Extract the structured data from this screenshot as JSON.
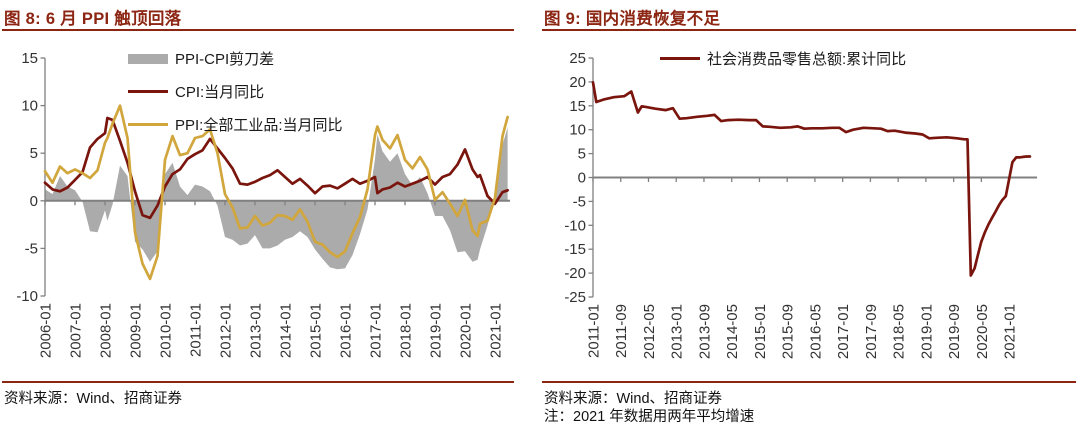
{
  "colors": {
    "accent_red": "#8C2613",
    "line_dark_red": "#7A150E",
    "line_gold": "#D1A63C",
    "area_gray": "#ABABAB",
    "axis_gray": "#808080",
    "axis_text": "#333333"
  },
  "figures": [
    {
      "title": "图 8: 6 月 PPI 触顶回落",
      "source": "资料来源：Wind、招商证券",
      "note": ""
    },
    {
      "title": "图 9: 国内消费恢复不足",
      "source": "资料来源：Wind、招商证券",
      "note": "注：2021 年数据用两年平均增速"
    }
  ],
  "chart_data": [
    {
      "type": "line+area",
      "title": "图 8: 6 月 PPI 触顶回落",
      "xlabel": "",
      "ylabel": "",
      "x_range": [
        2006.0,
        2021.5
      ],
      "y_range": [
        -10,
        15
      ],
      "y_ticks": [
        15,
        10,
        5,
        0,
        -5,
        -10
      ],
      "x_tick_labels": [
        "2006-01",
        "2007-01",
        "2008-01",
        "2009-01",
        "2010-01",
        "2011-01",
        "2012-01",
        "2013-01",
        "2014-01",
        "2015-01",
        "2016-01",
        "2017-01",
        "2018-01",
        "2019-01",
        "2020-01",
        "2021-01"
      ],
      "grid": false,
      "legend_position": "upper-center-stacked",
      "columns": [
        "month_decimal_year",
        "CPI:当月同比",
        "PPI:全部工业品:当月同比"
      ],
      "series": [
        {
          "name": "PPI-CPI剪刀差",
          "kind": "area",
          "color": "#ABABAB",
          "formula": "PPI - CPI"
        },
        {
          "name": "CPI:当月同比",
          "kind": "line",
          "color": "#7A150E",
          "col": 1
        },
        {
          "name": "PPI:全部工业品:当月同比",
          "kind": "line",
          "color": "#D1A63C",
          "col": 2
        }
      ],
      "rows": [
        [
          2006.0,
          1.9,
          3.1
        ],
        [
          2006.25,
          1.2,
          1.9
        ],
        [
          2006.5,
          1.0,
          3.6
        ],
        [
          2006.75,
          1.4,
          2.9
        ],
        [
          2007.0,
          2.2,
          3.3
        ],
        [
          2007.25,
          3.0,
          2.9
        ],
        [
          2007.5,
          5.6,
          2.4
        ],
        [
          2007.75,
          6.5,
          3.2
        ],
        [
          2008.0,
          7.1,
          6.1
        ],
        [
          2008.08,
          8.7,
          6.6
        ],
        [
          2008.25,
          8.5,
          8.1
        ],
        [
          2008.5,
          6.3,
          10.0
        ],
        [
          2008.75,
          4.0,
          6.6
        ],
        [
          2009.0,
          1.0,
          -3.3
        ],
        [
          2009.25,
          -1.5,
          -6.6
        ],
        [
          2009.5,
          -1.8,
          -8.2
        ],
        [
          2009.75,
          -0.5,
          -5.8
        ],
        [
          2010.0,
          1.5,
          4.3
        ],
        [
          2010.25,
          2.8,
          6.8
        ],
        [
          2010.5,
          3.3,
          4.8
        ],
        [
          2010.75,
          4.4,
          5.0
        ],
        [
          2011.0,
          4.9,
          6.6
        ],
        [
          2011.25,
          5.3,
          6.8
        ],
        [
          2011.5,
          6.5,
          7.5
        ],
        [
          2011.75,
          5.5,
          5.0
        ],
        [
          2012.0,
          4.5,
          0.7
        ],
        [
          2012.25,
          3.4,
          -0.7
        ],
        [
          2012.5,
          1.8,
          -2.9
        ],
        [
          2012.75,
          1.7,
          -2.8
        ],
        [
          2013.0,
          2.0,
          -1.6
        ],
        [
          2013.25,
          2.4,
          -2.6
        ],
        [
          2013.5,
          2.7,
          -2.3
        ],
        [
          2013.75,
          3.2,
          -1.5
        ],
        [
          2014.0,
          2.5,
          -1.6
        ],
        [
          2014.25,
          1.8,
          -2.0
        ],
        [
          2014.5,
          2.3,
          -0.9
        ],
        [
          2014.75,
          1.6,
          -2.2
        ],
        [
          2015.0,
          0.8,
          -4.3
        ],
        [
          2015.25,
          1.5,
          -4.6
        ],
        [
          2015.5,
          1.6,
          -5.4
        ],
        [
          2015.75,
          1.3,
          -5.9
        ],
        [
          2016.0,
          1.8,
          -5.3
        ],
        [
          2016.25,
          2.3,
          -3.4
        ],
        [
          2016.5,
          1.8,
          -1.7
        ],
        [
          2016.75,
          2.1,
          1.2
        ],
        [
          2017.0,
          2.5,
          6.9
        ],
        [
          2017.08,
          0.8,
          7.8
        ],
        [
          2017.25,
          1.2,
          6.4
        ],
        [
          2017.5,
          1.4,
          5.5
        ],
        [
          2017.75,
          1.9,
          6.9
        ],
        [
          2018.0,
          1.5,
          4.3
        ],
        [
          2018.25,
          1.8,
          3.4
        ],
        [
          2018.5,
          2.1,
          4.6
        ],
        [
          2018.75,
          2.5,
          3.3
        ],
        [
          2019.0,
          1.7,
          0.1
        ],
        [
          2019.25,
          2.5,
          0.9
        ],
        [
          2019.5,
          2.8,
          -0.3
        ],
        [
          2019.75,
          3.8,
          -1.6
        ],
        [
          2020.0,
          5.4,
          0.1
        ],
        [
          2020.25,
          3.3,
          -3.1
        ],
        [
          2020.42,
          2.5,
          -3.7
        ],
        [
          2020.5,
          2.7,
          -2.4
        ],
        [
          2020.75,
          0.5,
          -2.1
        ],
        [
          2021.0,
          -0.3,
          0.3
        ],
        [
          2021.25,
          0.9,
          6.8
        ],
        [
          2021.42,
          1.1,
          8.8
        ]
      ]
    },
    {
      "type": "line",
      "title": "图 9: 国内消费恢复不足",
      "xlabel": "",
      "ylabel": "",
      "x_range": [
        2011.0,
        2021.67
      ],
      "y_range": [
        -25,
        25
      ],
      "y_ticks": [
        25,
        20,
        15,
        10,
        5,
        0,
        -5,
        -10,
        -15,
        -20,
        -25
      ],
      "x_tick_labels": [
        "2011-01",
        "2011-09",
        "2012-05",
        "2013-01",
        "2013-09",
        "2014-05",
        "2015-01",
        "2015-09",
        "2016-05",
        "2017-01",
        "2017-09",
        "2018-05",
        "2019-01",
        "2019-09",
        "2020-05",
        "2021-01"
      ],
      "grid": false,
      "legend_position": "top-center",
      "columns": [
        "month_decimal_year",
        "社会消费品零售总额:累计同比"
      ],
      "series": [
        {
          "name": "社会消费品零售总额:累计同比",
          "kind": "line",
          "color": "#7A150E",
          "col": 1
        }
      ],
      "rows": [
        [
          2011.0,
          19.9
        ],
        [
          2011.08,
          15.8
        ],
        [
          2011.25,
          16.3
        ],
        [
          2011.5,
          16.8
        ],
        [
          2011.75,
          17.0
        ],
        [
          2011.92,
          18.0
        ],
        [
          2012.08,
          13.6
        ],
        [
          2012.17,
          14.9
        ],
        [
          2012.25,
          14.8
        ],
        [
          2012.5,
          14.4
        ],
        [
          2012.75,
          14.1
        ],
        [
          2012.92,
          14.5
        ],
        [
          2013.08,
          12.3
        ],
        [
          2013.25,
          12.4
        ],
        [
          2013.5,
          12.7
        ],
        [
          2013.75,
          12.9
        ],
        [
          2013.92,
          13.1
        ],
        [
          2014.08,
          11.8
        ],
        [
          2014.25,
          12.0
        ],
        [
          2014.5,
          12.1
        ],
        [
          2014.75,
          12.0
        ],
        [
          2014.92,
          12.0
        ],
        [
          2015.08,
          10.7
        ],
        [
          2015.25,
          10.6
        ],
        [
          2015.5,
          10.4
        ],
        [
          2015.75,
          10.5
        ],
        [
          2015.92,
          10.7
        ],
        [
          2016.08,
          10.2
        ],
        [
          2016.25,
          10.3
        ],
        [
          2016.5,
          10.3
        ],
        [
          2016.75,
          10.4
        ],
        [
          2016.92,
          10.4
        ],
        [
          2017.08,
          9.5
        ],
        [
          2017.25,
          10.0
        ],
        [
          2017.5,
          10.4
        ],
        [
          2017.75,
          10.3
        ],
        [
          2017.92,
          10.2
        ],
        [
          2018.08,
          9.7
        ],
        [
          2018.25,
          9.8
        ],
        [
          2018.5,
          9.4
        ],
        [
          2018.75,
          9.2
        ],
        [
          2018.92,
          9.0
        ],
        [
          2019.08,
          8.2
        ],
        [
          2019.25,
          8.3
        ],
        [
          2019.5,
          8.4
        ],
        [
          2019.75,
          8.2
        ],
        [
          2019.92,
          8.0
        ],
        [
          2020.0,
          8.0
        ],
        [
          2020.08,
          -20.5
        ],
        [
          2020.17,
          -19.0
        ],
        [
          2020.25,
          -16.2
        ],
        [
          2020.33,
          -13.5
        ],
        [
          2020.42,
          -11.4
        ],
        [
          2020.5,
          -9.9
        ],
        [
          2020.58,
          -8.6
        ],
        [
          2020.67,
          -7.2
        ],
        [
          2020.75,
          -5.9
        ],
        [
          2020.83,
          -4.8
        ],
        [
          2020.92,
          -3.9
        ],
        [
          2021.08,
          3.2
        ],
        [
          2021.17,
          4.2
        ],
        [
          2021.25,
          4.2
        ],
        [
          2021.33,
          4.3
        ],
        [
          2021.42,
          4.4
        ],
        [
          2021.5,
          4.4
        ]
      ]
    }
  ]
}
